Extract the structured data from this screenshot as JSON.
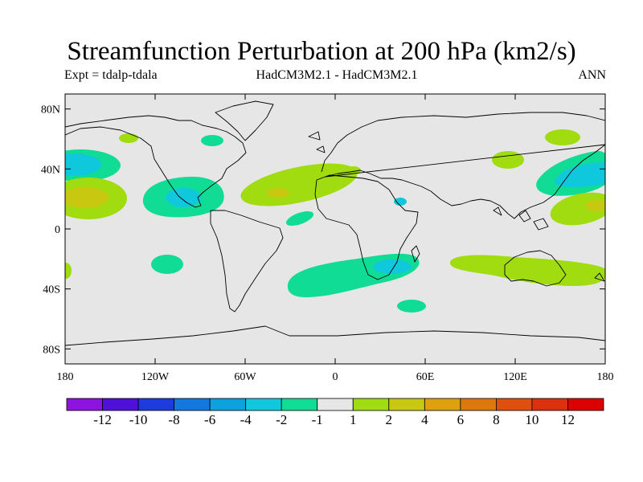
{
  "figure": {
    "title": "Streamfunction Perturbation at 200 hPa (km2/s)",
    "subtitle_left": "Expt = tdalp-tdala",
    "subtitle_center": "HadCM3M2.1 - HadCM3M2.1",
    "subtitle_right": "ANN"
  },
  "map": {
    "lat_ticks": [
      "80N",
      "40N",
      "0",
      "40S",
      "80S"
    ],
    "lon_ticks": [
      "180",
      "120W",
      "60W",
      "0",
      "60E",
      "120E",
      "180"
    ],
    "background_color": "#e6e6e6"
  },
  "colorbar": {
    "labels": [
      "-12",
      "-10",
      "-8",
      "-6",
      "-4",
      "-2",
      "-1",
      "1",
      "2",
      "4",
      "6",
      "8",
      "10",
      "12"
    ],
    "colors": [
      "#8c14dc",
      "#5010dc",
      "#1e3cdc",
      "#1478dc",
      "#10a0dc",
      "#10c8dc",
      "#10dc96",
      "#e6e6e6",
      "#a0dc10",
      "#c8c810",
      "#dca010",
      "#dc7810",
      "#dc5010",
      "#dc3010",
      "#dc0000"
    ]
  }
}
